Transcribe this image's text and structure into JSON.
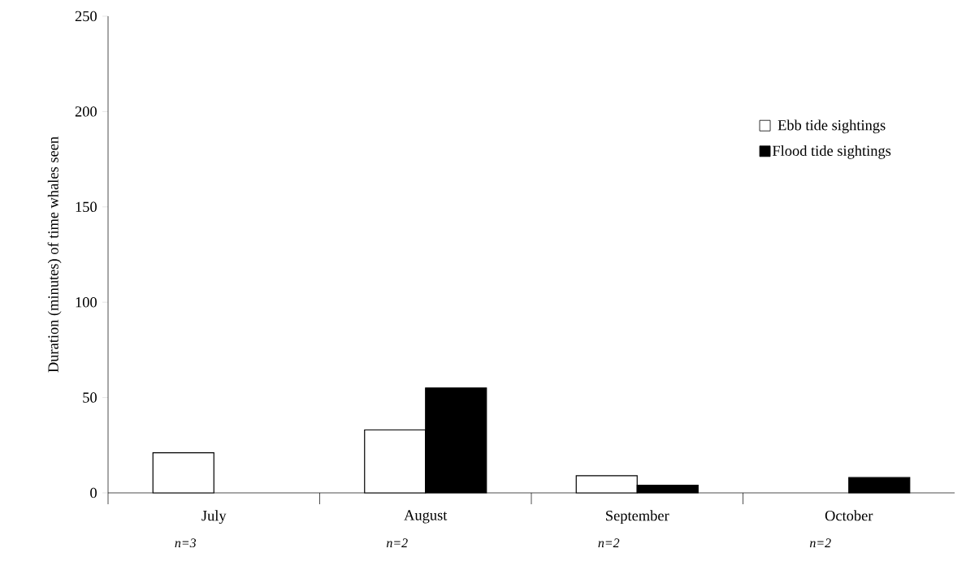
{
  "chart_data": {
    "type": "bar",
    "ylabel": "Duration (minutes) of time whales seen",
    "categories": [
      "July",
      "August",
      "September",
      "October"
    ],
    "series": [
      {
        "name": "Ebb tide sightings",
        "color": "#ffffff",
        "values": [
          21,
          33,
          9,
          null
        ]
      },
      {
        "name": "Flood tide sightings",
        "color": "#000000",
        "values": [
          null,
          55,
          4,
          8
        ]
      }
    ],
    "ylim": [
      0,
      250
    ],
    "yticks": [
      0,
      50,
      100,
      150,
      200,
      250
    ],
    "grid": false,
    "legend": "top right",
    "annotations": [
      "n=3",
      "n=2",
      "n=2",
      "n=2"
    ]
  }
}
